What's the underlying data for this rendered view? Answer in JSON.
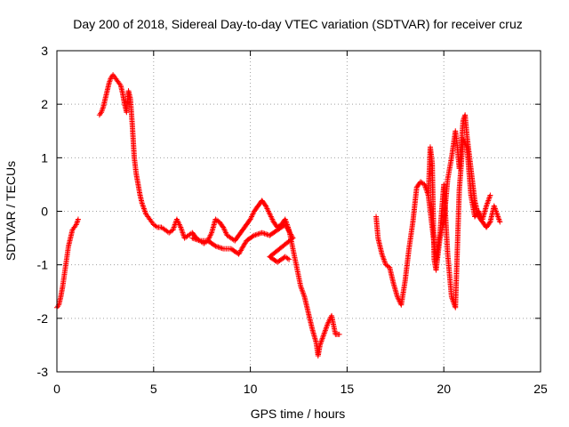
{
  "chart_data": {
    "type": "scatter",
    "title": "Day 200 of 2018, Sidereal Day-to-day VTEC variation (SDTVAR) for receiver cruz",
    "xlabel": "GPS time / hours",
    "ylabel": "SDTVAR / TECUs",
    "xlim": [
      0,
      25
    ],
    "ylim": [
      -3,
      3
    ],
    "x_ticks": [
      0,
      5,
      10,
      15,
      20,
      25
    ],
    "y_ticks": [
      -3,
      -2,
      -1,
      0,
      1,
      2,
      3
    ],
    "grid": true,
    "marker": "+",
    "color": "#ff0000",
    "series": [
      {
        "name": "segment-1",
        "points": [
          [
            0.0,
            -1.8
          ],
          [
            0.1,
            -1.75
          ],
          [
            0.2,
            -1.6
          ],
          [
            0.3,
            -1.4
          ],
          [
            0.4,
            -1.15
          ],
          [
            0.5,
            -0.9
          ],
          [
            0.6,
            -0.65
          ],
          [
            0.7,
            -0.5
          ],
          [
            0.8,
            -0.35
          ],
          [
            0.9,
            -0.3
          ],
          [
            1.0,
            -0.25
          ],
          [
            1.1,
            -0.15
          ]
        ]
      },
      {
        "name": "segment-2",
        "points": [
          [
            2.2,
            1.8
          ],
          [
            2.3,
            1.85
          ],
          [
            2.4,
            1.95
          ],
          [
            2.5,
            2.1
          ],
          [
            2.6,
            2.25
          ],
          [
            2.7,
            2.4
          ],
          [
            2.8,
            2.5
          ],
          [
            2.9,
            2.55
          ],
          [
            3.0,
            2.5
          ],
          [
            3.1,
            2.45
          ],
          [
            3.2,
            2.4
          ],
          [
            3.3,
            2.35
          ],
          [
            3.4,
            2.2
          ],
          [
            3.5,
            2.0
          ],
          [
            3.6,
            1.85
          ],
          [
            3.7,
            2.25
          ],
          [
            3.8,
            2.1
          ],
          [
            3.9,
            1.6
          ],
          [
            4.0,
            1.0
          ],
          [
            4.1,
            0.7
          ],
          [
            4.2,
            0.5
          ],
          [
            4.3,
            0.3
          ],
          [
            4.4,
            0.15
          ],
          [
            4.5,
            0.05
          ],
          [
            4.6,
            -0.05
          ],
          [
            4.7,
            -0.1
          ],
          [
            4.8,
            -0.15
          ],
          [
            4.9,
            -0.2
          ],
          [
            5.0,
            -0.25
          ],
          [
            5.2,
            -0.3
          ],
          [
            5.4,
            -0.3
          ],
          [
            5.6,
            -0.35
          ],
          [
            5.8,
            -0.4
          ],
          [
            6.0,
            -0.35
          ],
          [
            6.2,
            -0.15
          ],
          [
            6.4,
            -0.3
          ],
          [
            6.6,
            -0.5
          ],
          [
            6.8,
            -0.45
          ],
          [
            7.0,
            -0.4
          ],
          [
            7.2,
            -0.5
          ],
          [
            7.4,
            -0.55
          ],
          [
            7.6,
            -0.6
          ],
          [
            7.8,
            -0.55
          ],
          [
            8.0,
            -0.4
          ],
          [
            8.2,
            -0.15
          ],
          [
            8.4,
            -0.2
          ],
          [
            8.6,
            -0.3
          ],
          [
            8.8,
            -0.45
          ],
          [
            9.0,
            -0.5
          ],
          [
            9.2,
            -0.55
          ],
          [
            9.4,
            -0.45
          ],
          [
            9.6,
            -0.35
          ],
          [
            9.8,
            -0.25
          ],
          [
            10.0,
            -0.15
          ],
          [
            10.2,
            0.0
          ],
          [
            10.4,
            0.1
          ],
          [
            10.6,
            0.2
          ],
          [
            10.8,
            0.1
          ],
          [
            11.0,
            -0.05
          ],
          [
            11.2,
            -0.2
          ],
          [
            11.4,
            -0.3
          ],
          [
            11.6,
            -0.25
          ],
          [
            11.8,
            -0.15
          ],
          [
            12.0,
            -0.35
          ],
          [
            12.2,
            -0.7
          ],
          [
            12.4,
            -1.05
          ],
          [
            12.6,
            -1.4
          ],
          [
            12.8,
            -1.6
          ],
          [
            13.0,
            -1.9
          ],
          [
            13.2,
            -2.2
          ],
          [
            13.4,
            -2.45
          ],
          [
            13.5,
            -2.7
          ],
          [
            13.6,
            -2.5
          ],
          [
            13.8,
            -2.3
          ],
          [
            14.0,
            -2.1
          ],
          [
            14.2,
            -1.95
          ],
          [
            14.4,
            -2.3
          ],
          [
            14.6,
            -2.3
          ]
        ]
      },
      {
        "name": "segment-2b",
        "points": [
          [
            7.0,
            -0.5
          ],
          [
            7.4,
            -0.55
          ],
          [
            7.8,
            -0.55
          ],
          [
            8.2,
            -0.65
          ],
          [
            8.6,
            -0.7
          ],
          [
            9.0,
            -0.7
          ],
          [
            9.4,
            -0.8
          ],
          [
            9.8,
            -0.55
          ],
          [
            10.2,
            -0.45
          ],
          [
            10.6,
            -0.4
          ],
          [
            11.0,
            -0.45
          ],
          [
            11.4,
            -0.35
          ],
          [
            11.8,
            -0.25
          ],
          [
            12.2,
            -0.5
          ],
          [
            11.0,
            -0.85
          ],
          [
            11.4,
            -0.95
          ],
          [
            11.8,
            -0.85
          ],
          [
            12.0,
            -0.9
          ]
        ]
      },
      {
        "name": "segment-3",
        "points": [
          [
            16.5,
            -0.1
          ],
          [
            16.6,
            -0.5
          ],
          [
            16.8,
            -0.8
          ],
          [
            17.0,
            -1.0
          ],
          [
            17.2,
            -1.05
          ],
          [
            17.4,
            -1.35
          ],
          [
            17.6,
            -1.6
          ],
          [
            17.8,
            -1.75
          ],
          [
            18.0,
            -1.3
          ],
          [
            18.2,
            -0.7
          ],
          [
            18.4,
            -0.2
          ],
          [
            18.6,
            0.45
          ],
          [
            18.8,
            0.55
          ],
          [
            19.0,
            0.5
          ],
          [
            19.2,
            0.3
          ],
          [
            19.3,
            1.2
          ],
          [
            19.4,
            0.9
          ],
          [
            19.5,
            -0.9
          ],
          [
            19.6,
            -1.1
          ],
          [
            19.8,
            -0.5
          ],
          [
            20.0,
            -0.2
          ],
          [
            20.2,
            0.6
          ],
          [
            20.4,
            1.0
          ],
          [
            20.6,
            1.5
          ],
          [
            20.7,
            1.2
          ],
          [
            20.8,
            0.8
          ],
          [
            21.0,
            1.7
          ],
          [
            21.1,
            1.8
          ],
          [
            21.2,
            1.4
          ],
          [
            21.4,
            0.8
          ],
          [
            21.6,
            0.2
          ],
          [
            21.8,
            -0.1
          ],
          [
            22.0,
            -0.2
          ],
          [
            22.2,
            -0.3
          ],
          [
            22.4,
            -0.2
          ],
          [
            22.6,
            0.1
          ],
          [
            22.8,
            -0.1
          ],
          [
            22.9,
            -0.2
          ]
        ]
      },
      {
        "name": "segment-3b",
        "points": [
          [
            19.2,
            0.3
          ],
          [
            19.4,
            -0.3
          ],
          [
            19.6,
            -0.9
          ],
          [
            19.8,
            -0.4
          ],
          [
            20.0,
            0.5
          ],
          [
            20.2,
            -0.8
          ],
          [
            20.4,
            -1.6
          ],
          [
            20.6,
            -1.8
          ],
          [
            20.8,
            0.4
          ],
          [
            21.0,
            1.35
          ],
          [
            21.2,
            1.2
          ],
          [
            21.4,
            0.3
          ],
          [
            21.6,
            -0.1
          ],
          [
            21.8,
            0.0
          ],
          [
            22.0,
            -0.15
          ],
          [
            22.2,
            0.1
          ],
          [
            22.4,
            0.3
          ]
        ]
      }
    ]
  }
}
